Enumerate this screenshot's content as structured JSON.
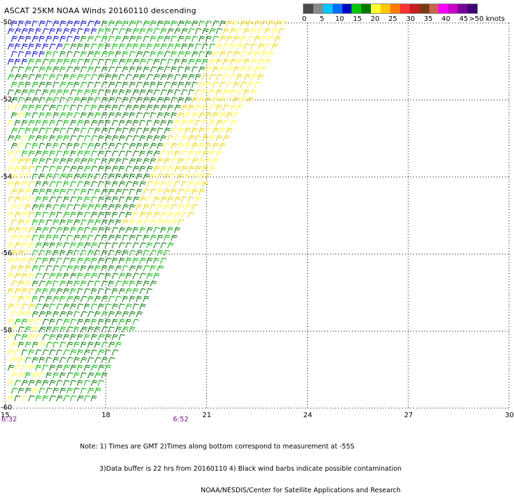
{
  "title": "ASCAT 25KM NOAA Winds 20160110 descending",
  "legend": {
    "colors": [
      "#4a4a4a",
      "#8a8a8a",
      "#00c8ff",
      "#0070ff",
      "#0000c8",
      "#00c800",
      "#007800",
      "#ffff32",
      "#ffc800",
      "#ff7800",
      "#ff3232",
      "#c81e1e",
      "#783c14",
      "#c86450",
      "#ff00ff",
      "#c800c8",
      "#780096",
      "#3c0078"
    ],
    "labels": [
      "0",
      "5",
      "10",
      "15",
      "20",
      "25",
      "30",
      "35",
      "40",
      "45",
      ">50 knots"
    ]
  },
  "axes": {
    "lat_labels": [
      "-50",
      "-52",
      "-54",
      "-56",
      "-58",
      "-60"
    ],
    "lon_labels": [
      "15",
      "18",
      "21",
      "24",
      "27",
      "30"
    ],
    "lat_range": [
      -60,
      -50
    ],
    "lon_range": [
      15,
      30
    ],
    "grid": "dotted"
  },
  "times": [
    "6:32",
    "6:52"
  ],
  "notes": [
    "Note: 1) Times are GMT 2)Times along bottom correspond to measurement at -55S",
    "3)Data buffer is 22 hrs from 20160110 4) Black wind barbs indicate possible contamination",
    "NOAA/NESDIS/Center for Satellite Applications and Research"
  ],
  "wind_colors": {
    "blue": "#0000c8",
    "green": "#00b400",
    "dark_green": "#007800",
    "yellow": "#ffff32",
    "gold": "#f0d200"
  }
}
